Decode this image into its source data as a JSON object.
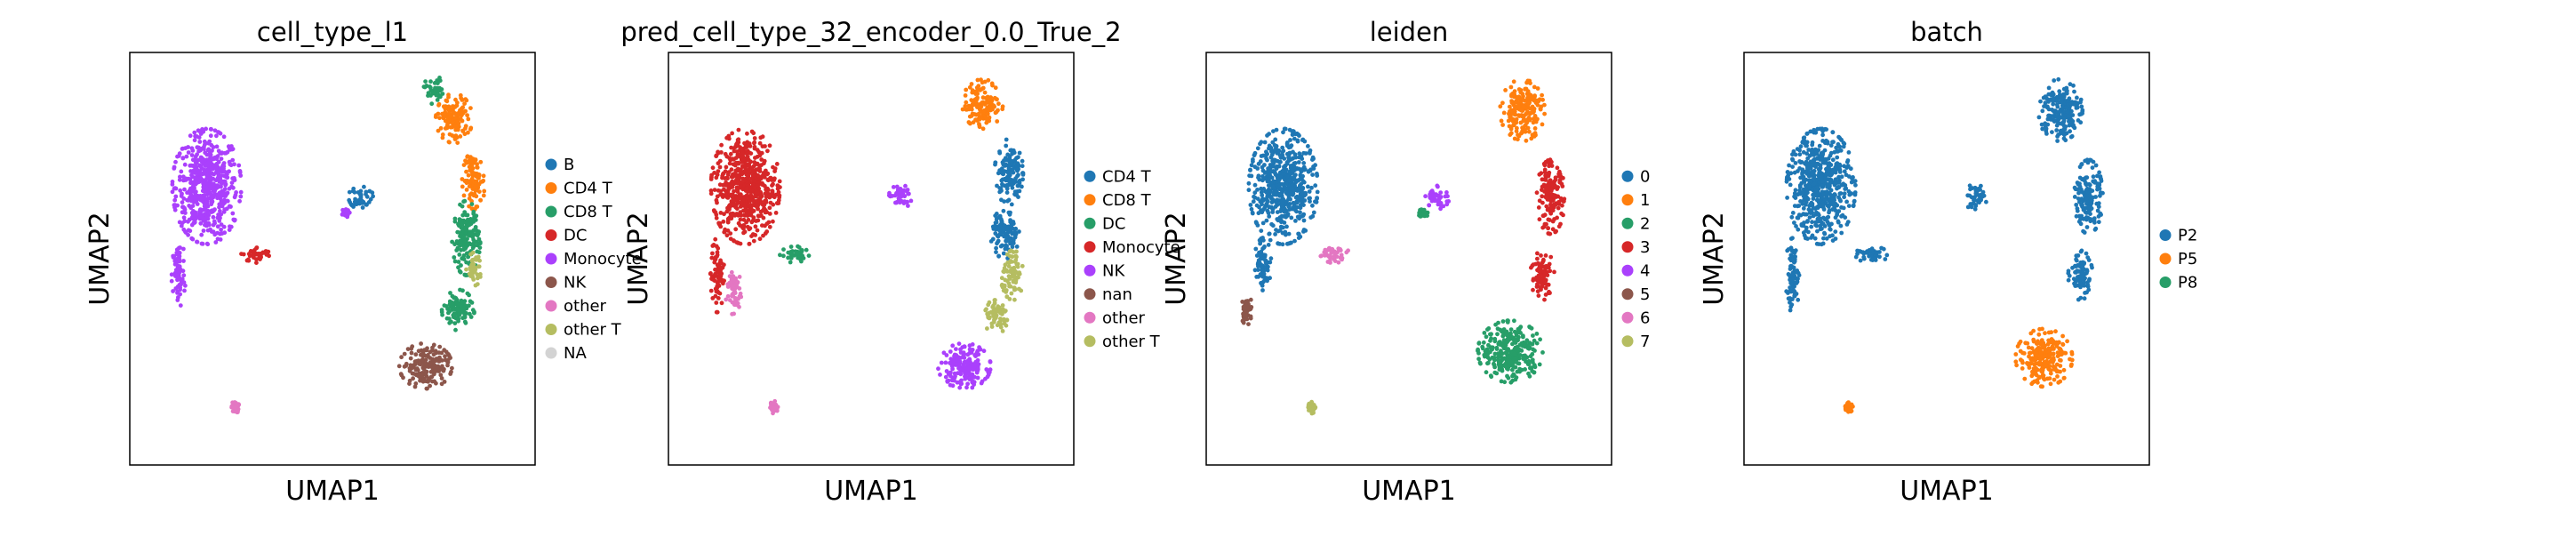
{
  "chart_data": [
    {
      "type": "scatter",
      "title": "cell_type_l1",
      "xlabel": "UMAP1",
      "ylabel": "UMAP2",
      "legend_position": "right",
      "legend": [
        {
          "label": "B",
          "color": "#1f77b4"
        },
        {
          "label": "CD4 T",
          "color": "#ff7f0e"
        },
        {
          "label": "CD8 T",
          "color": "#279e68"
        },
        {
          "label": "DC",
          "color": "#d62728"
        },
        {
          "label": "Monocyte",
          "color": "#aa40fc"
        },
        {
          "label": "NK",
          "color": "#8c564b"
        },
        {
          "label": "other",
          "color": "#e377c2"
        },
        {
          "label": "other T",
          "color": "#b5bd61"
        },
        {
          "label": "NA",
          "color": "#d3d3d3"
        }
      ],
      "regions": [
        {
          "label": "Monocyte",
          "cx": -0.62,
          "cy": 0.35,
          "rx": 0.17,
          "ry": 0.28
        },
        {
          "label": "Monocyte",
          "cx": -0.76,
          "cy": -0.08,
          "rx": 0.035,
          "ry": 0.18
        },
        {
          "label": "DC",
          "cx": -0.37,
          "cy": 0.02,
          "rx": 0.08,
          "ry": 0.04
        },
        {
          "label": "B",
          "cx": 0.14,
          "cy": 0.3,
          "rx": 0.06,
          "ry": 0.06
        },
        {
          "label": "Monocyte",
          "cx": 0.06,
          "cy": 0.22,
          "rx": 0.025,
          "ry": 0.02
        },
        {
          "label": "other",
          "cx": -0.48,
          "cy": -0.72,
          "rx": 0.02,
          "ry": 0.03
        },
        {
          "label": "CD8 T",
          "cx": 0.5,
          "cy": 0.82,
          "rx": 0.05,
          "ry": 0.07
        },
        {
          "label": "CD4 T",
          "cx": 0.6,
          "cy": 0.68,
          "rx": 0.09,
          "ry": 0.12
        },
        {
          "label": "CD4 T",
          "cx": 0.7,
          "cy": 0.38,
          "rx": 0.06,
          "ry": 0.14
        },
        {
          "label": "CD8 T",
          "cx": 0.66,
          "cy": 0.1,
          "rx": 0.07,
          "ry": 0.18
        },
        {
          "label": "other T",
          "cx": 0.7,
          "cy": -0.05,
          "rx": 0.04,
          "ry": 0.08
        },
        {
          "label": "CD8 T",
          "cx": 0.62,
          "cy": -0.25,
          "rx": 0.08,
          "ry": 0.1
        },
        {
          "label": "NK",
          "cx": 0.46,
          "cy": -0.52,
          "rx": 0.13,
          "ry": 0.11
        }
      ]
    },
    {
      "type": "scatter",
      "title": "pred_cell_type_32_encoder_0.0_True_2",
      "xlabel": "UMAP1",
      "ylabel": "UMAP2",
      "legend_position": "right",
      "legend": [
        {
          "label": "CD4 T",
          "color": "#1f77b4"
        },
        {
          "label": "CD8 T",
          "color": "#ff7f0e"
        },
        {
          "label": "DC",
          "color": "#279e68"
        },
        {
          "label": "Monocyte",
          "color": "#d62728"
        },
        {
          "label": "NK",
          "color": "#aa40fc"
        },
        {
          "label": "nan",
          "color": "#8c564b"
        },
        {
          "label": "other",
          "color": "#e377c2"
        },
        {
          "label": "other T",
          "color": "#b5bd61"
        }
      ],
      "regions": [
        {
          "label": "Monocyte",
          "cx": -0.62,
          "cy": 0.35,
          "rx": 0.17,
          "ry": 0.28
        },
        {
          "label": "Monocyte",
          "cx": -0.76,
          "cy": -0.08,
          "rx": 0.035,
          "ry": 0.18
        },
        {
          "label": "other",
          "cx": -0.68,
          "cy": -0.15,
          "rx": 0.04,
          "ry": 0.12
        },
        {
          "label": "DC",
          "cx": -0.37,
          "cy": 0.02,
          "rx": 0.08,
          "ry": 0.04
        },
        {
          "label": "NK",
          "cx": 0.14,
          "cy": 0.3,
          "rx": 0.06,
          "ry": 0.06
        },
        {
          "label": "other",
          "cx": -0.48,
          "cy": -0.72,
          "rx": 0.02,
          "ry": 0.03
        },
        {
          "label": "CD8 T",
          "cx": 0.55,
          "cy": 0.75,
          "rx": 0.1,
          "ry": 0.12
        },
        {
          "label": "CD4 T",
          "cx": 0.68,
          "cy": 0.42,
          "rx": 0.07,
          "ry": 0.16
        },
        {
          "label": "CD4 T",
          "cx": 0.66,
          "cy": 0.12,
          "rx": 0.07,
          "ry": 0.12
        },
        {
          "label": "other T",
          "cx": 0.7,
          "cy": -0.08,
          "rx": 0.06,
          "ry": 0.12
        },
        {
          "label": "other T",
          "cx": 0.62,
          "cy": -0.28,
          "rx": 0.07,
          "ry": 0.08
        },
        {
          "label": "NK",
          "cx": 0.46,
          "cy": -0.52,
          "rx": 0.13,
          "ry": 0.11
        }
      ]
    },
    {
      "type": "scatter",
      "title": "leiden",
      "xlabel": "UMAP1",
      "ylabel": "UMAP2",
      "legend_position": "right",
      "legend": [
        {
          "label": "0",
          "color": "#1f77b4"
        },
        {
          "label": "1",
          "color": "#ff7f0e"
        },
        {
          "label": "2",
          "color": "#279e68"
        },
        {
          "label": "3",
          "color": "#d62728"
        },
        {
          "label": "4",
          "color": "#aa40fc"
        },
        {
          "label": "5",
          "color": "#8c564b"
        },
        {
          "label": "6",
          "color": "#e377c2"
        },
        {
          "label": "7",
          "color": "#b5bd61"
        }
      ],
      "regions": [
        {
          "label": "0",
          "cx": -0.62,
          "cy": 0.35,
          "rx": 0.17,
          "ry": 0.28
        },
        {
          "label": "0",
          "cx": -0.72,
          "cy": -0.02,
          "rx": 0.04,
          "ry": 0.14
        },
        {
          "label": "5",
          "cx": -0.8,
          "cy": -0.25,
          "rx": 0.03,
          "ry": 0.07
        },
        {
          "label": "6",
          "cx": -0.37,
          "cy": 0.02,
          "rx": 0.08,
          "ry": 0.04
        },
        {
          "label": "4",
          "cx": 0.14,
          "cy": 0.3,
          "rx": 0.06,
          "ry": 0.06
        },
        {
          "label": "2",
          "cx": 0.07,
          "cy": 0.22,
          "rx": 0.025,
          "ry": 0.02
        },
        {
          "label": "7",
          "cx": -0.48,
          "cy": -0.72,
          "rx": 0.02,
          "ry": 0.03
        },
        {
          "label": "1",
          "cx": 0.56,
          "cy": 0.72,
          "rx": 0.11,
          "ry": 0.15
        },
        {
          "label": "3",
          "cx": 0.7,
          "cy": 0.3,
          "rx": 0.07,
          "ry": 0.18
        },
        {
          "label": "3",
          "cx": 0.66,
          "cy": -0.08,
          "rx": 0.06,
          "ry": 0.12
        },
        {
          "label": "2",
          "cx": 0.5,
          "cy": -0.45,
          "rx": 0.16,
          "ry": 0.15
        }
      ]
    },
    {
      "type": "scatter",
      "title": "batch",
      "xlabel": "UMAP1",
      "ylabel": "UMAP2",
      "legend_position": "right",
      "legend": [
        {
          "label": "P2",
          "color": "#1f77b4"
        },
        {
          "label": "P5",
          "color": "#ff7f0e"
        },
        {
          "label": "P8",
          "color": "#279e68"
        }
      ],
      "regions": [
        {
          "label": "P2",
          "cx": -0.62,
          "cy": 0.35,
          "rx": 0.17,
          "ry": 0.28
        },
        {
          "label": "P2",
          "cx": -0.76,
          "cy": -0.08,
          "rx": 0.035,
          "ry": 0.18
        },
        {
          "label": "P2",
          "cx": -0.37,
          "cy": 0.02,
          "rx": 0.08,
          "ry": 0.04
        },
        {
          "label": "P2",
          "cx": 0.14,
          "cy": 0.3,
          "rx": 0.06,
          "ry": 0.06
        },
        {
          "label": "P5",
          "cx": -0.48,
          "cy": -0.72,
          "rx": 0.02,
          "ry": 0.03
        },
        {
          "label": "P2",
          "cx": 0.56,
          "cy": 0.72,
          "rx": 0.11,
          "ry": 0.15
        },
        {
          "label": "P2",
          "cx": 0.7,
          "cy": 0.3,
          "rx": 0.07,
          "ry": 0.18
        },
        {
          "label": "P2",
          "cx": 0.66,
          "cy": -0.08,
          "rx": 0.06,
          "ry": 0.12
        },
        {
          "label": "P5",
          "cx": 0.48,
          "cy": -0.48,
          "rx": 0.14,
          "ry": 0.14
        }
      ]
    }
  ]
}
